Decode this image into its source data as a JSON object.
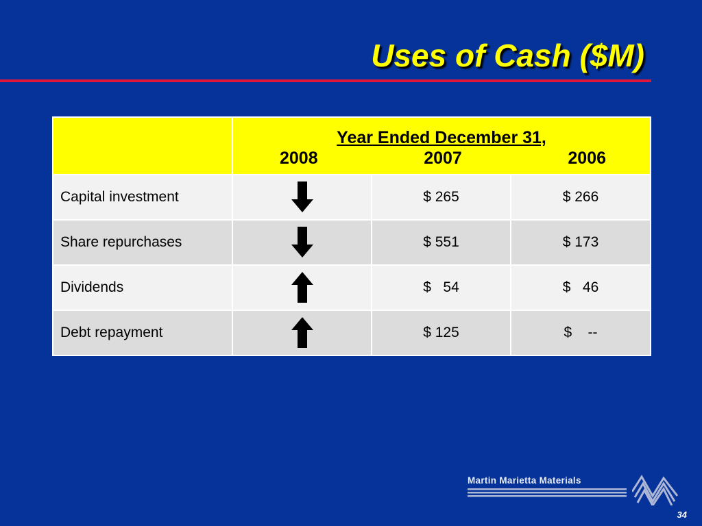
{
  "slide": {
    "title": "Uses of Cash ($M)",
    "page_number": "34"
  },
  "table": {
    "header": {
      "caption": "Year Ended December 31,",
      "years": [
        "2008",
        "2007",
        "2006"
      ]
    },
    "rows": [
      {
        "label": "Capital investment",
        "trend_2008": "down-arrow",
        "v2007": "$ 265",
        "v2006": "$ 266"
      },
      {
        "label": "Share repurchases",
        "trend_2008": "down-arrow",
        "v2007": "$ 551",
        "v2006": "$ 173"
      },
      {
        "label": "Dividends",
        "trend_2008": "up-arrow",
        "v2007": "$   54",
        "v2006": "$   46"
      },
      {
        "label": "Debt repayment",
        "trend_2008": "up-arrow",
        "v2007": "$ 125",
        "v2006": "$    --"
      }
    ]
  },
  "footer": {
    "logo_text": "Martin Marietta Materials"
  },
  "colors": {
    "background": "#053399",
    "title": "#FFFF00",
    "rule": "#E0163A",
    "header_fill": "#FFFF00",
    "row_light": "#F2F2F2",
    "row_dark": "#DCDCDC"
  }
}
